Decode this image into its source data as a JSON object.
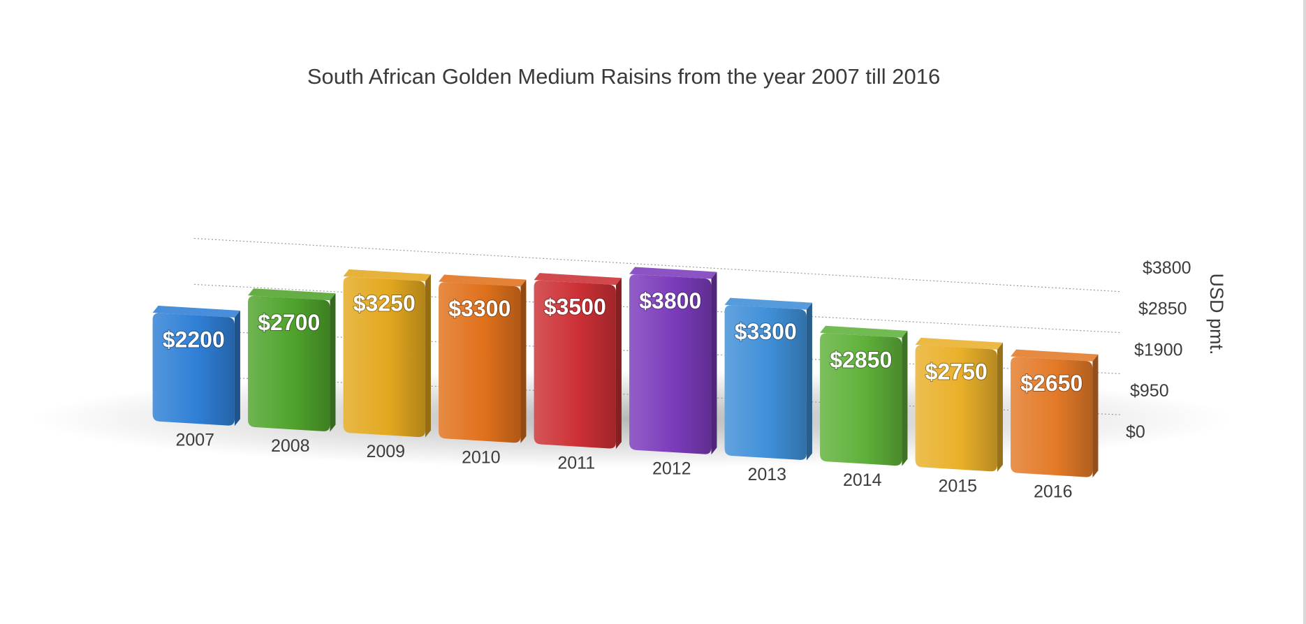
{
  "chart_data": {
    "type": "bar",
    "title": "South African Golden Medium Raisins from the year 2007 till 2016",
    "xlabel": "",
    "ylabel": "USD pmt.",
    "categories": [
      "2007",
      "2008",
      "2009",
      "2010",
      "2011",
      "2012",
      "2013",
      "2014",
      "2015",
      "2016"
    ],
    "values": [
      2200,
      2700,
      3250,
      3300,
      3500,
      3800,
      3300,
      2850,
      2750,
      2650
    ],
    "value_labels": [
      "$2200",
      "$2700",
      "$3250",
      "$3300",
      "$3500",
      "$3800",
      "$3300",
      "$2850",
      "$2750",
      "$2650"
    ],
    "yticks": [
      0,
      950,
      1900,
      2850,
      3800
    ],
    "ytick_labels": [
      "$0",
      "$950",
      "$1900",
      "$2850",
      "$3800"
    ],
    "ylim": [
      0,
      3800
    ],
    "grid": true,
    "legend": "none",
    "colors": [
      "#2f7fd6",
      "#4fa32c",
      "#e3a81f",
      "#e0711c",
      "#cc3035",
      "#7b3bbb",
      "#3f8fd8",
      "#5fb13a",
      "#e9b02a",
      "#e37a28"
    ]
  }
}
